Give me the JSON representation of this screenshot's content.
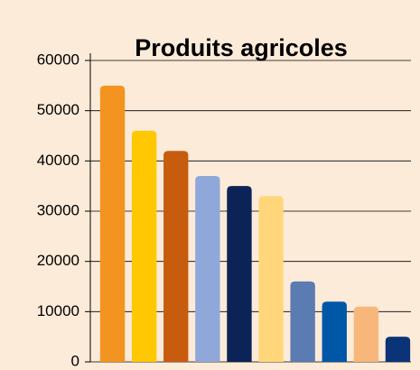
{
  "chart_data": {
    "type": "bar",
    "title": "Produits agricoles",
    "categories": [
      null,
      null,
      null,
      null,
      null,
      null,
      null,
      null,
      null,
      null
    ],
    "values": [
      55000,
      46000,
      42000,
      37000,
      35000,
      33000,
      16000,
      12000,
      11000,
      5000
    ],
    "colors": [
      "#f39320",
      "#ffc800",
      "#c75b0e",
      "#8fa8d9",
      "#0b2357",
      "#ffd67a",
      "#5b7bb3",
      "#0057a8",
      "#f7b77a",
      "#0b3478"
    ],
    "ylim": [
      0,
      60000
    ],
    "yticks": [
      0,
      10000,
      20000,
      30000,
      40000,
      50000,
      60000
    ],
    "grid": true
  }
}
